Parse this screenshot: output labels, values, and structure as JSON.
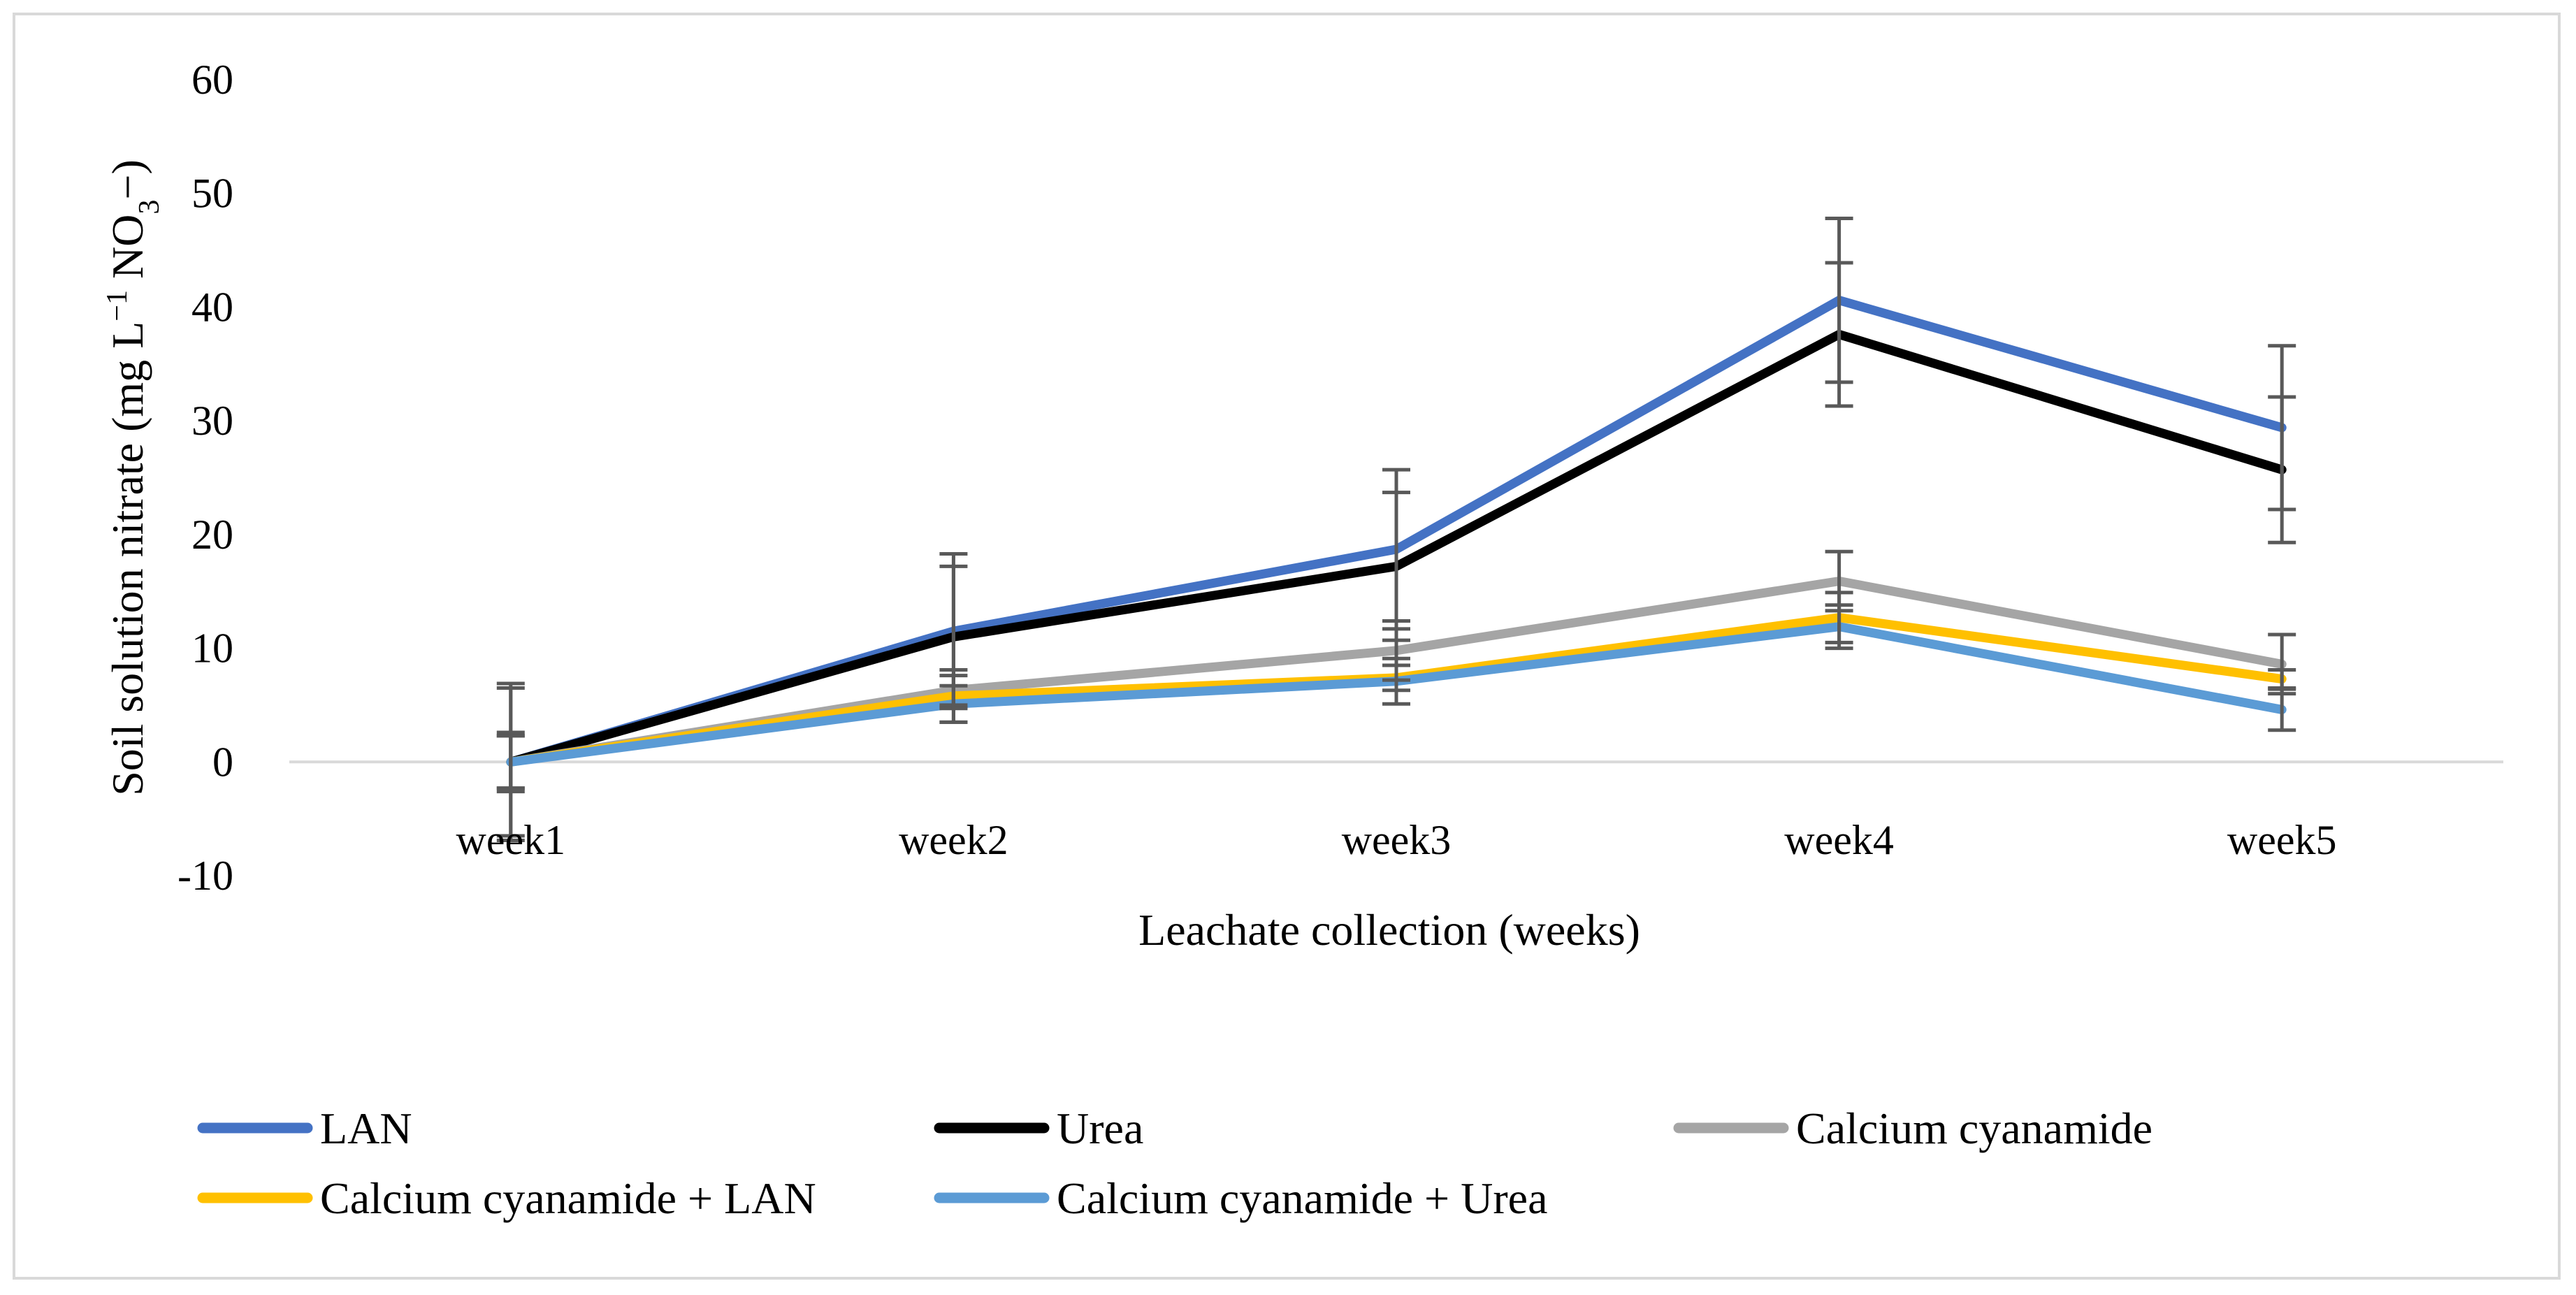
{
  "chart_data": {
    "type": "line",
    "title": "",
    "xlabel": "Leachate collection (weeks)",
    "ylabel": "Soil solution nitrate (mg L−1 NO3−)",
    "ylabel_parts": {
      "main": "Soil solution nitrate (mg L",
      "sup1": "−1",
      "mid": " NO",
      "sub": "3",
      "end": "−)"
    },
    "ylim": [
      -10,
      60
    ],
    "yticks": [
      -10,
      0,
      10,
      20,
      30,
      40,
      50,
      60
    ],
    "ytick_labels": [
      "-10",
      "0",
      "10",
      "20",
      "30",
      "40",
      "50",
      "60"
    ],
    "categories": [
      "week1",
      "week2",
      "week3",
      "week4",
      "week5"
    ],
    "grid": false,
    "legend_position": "bottom",
    "series": [
      {
        "name": "LAN",
        "color": "#4472C4",
        "values": [
          0,
          11.5,
          18.7,
          40.6,
          29.4
        ],
        "errors": [
          6.9,
          6.8,
          7.0,
          7.2,
          7.2
        ]
      },
      {
        "name": "Urea",
        "color": "#000000",
        "values": [
          0,
          11.0,
          17.2,
          37.6,
          25.7
        ],
        "errors": [
          6.5,
          6.2,
          6.5,
          6.3,
          6.4
        ]
      },
      {
        "name": "Calcium cyanamide",
        "color": "#A5A5A5",
        "values": [
          0,
          6.3,
          9.8,
          15.9,
          8.6
        ],
        "errors": [
          2.6,
          1.3,
          2.6,
          2.6,
          2.6
        ]
      },
      {
        "name": "Calcium cyanamide + LAN",
        "color": "#FFC000",
        "values": [
          0,
          5.8,
          7.4,
          12.7,
          7.3
        ],
        "errors": [
          2.3,
          2.3,
          1.1,
          2.2,
          0.8
        ]
      },
      {
        "name": "Calcium cyanamide + Urea",
        "color": "#5B9BD5",
        "values": [
          0,
          5.1,
          7.1,
          11.9,
          4.6
        ],
        "errors": [
          2.3,
          1.6,
          2.0,
          1.9,
          1.8
        ]
      }
    ]
  }
}
